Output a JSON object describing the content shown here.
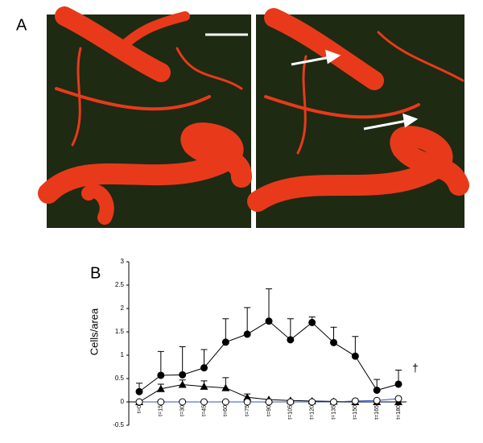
{
  "panel_a": {
    "label": "A"
  },
  "chart_data": {
    "type": "line",
    "label": "B",
    "ylabel": "Cells/area",
    "annotation": "†",
    "categories": [
      "t=0",
      "t=15",
      "t=30",
      "t=45",
      "t=60",
      "t=75",
      "t=90",
      "t=105",
      "t=120",
      "t=135",
      "t=150",
      "t=165",
      "t=180"
    ],
    "ylim": [
      -0.5,
      3
    ],
    "yticks": [
      -0.5,
      0,
      0.5,
      1,
      1.5,
      2,
      2.5,
      3
    ],
    "series": [
      {
        "color": "#000000",
        "marker": "filled-circle",
        "values": [
          0.22,
          0.57,
          0.58,
          0.73,
          1.28,
          1.45,
          1.73,
          1.33,
          1.7,
          1.27,
          0.98,
          0.25,
          0.38
        ],
        "errors": [
          0.18,
          0.51,
          0.6,
          0.39,
          0.5,
          0.57,
          0.69,
          0.45,
          0.12,
          0.33,
          0.42,
          0.23,
          0.3
        ]
      },
      {
        "color": "#000000",
        "marker": "triangle",
        "values": [
          0,
          0.28,
          0.37,
          0.33,
          0.3,
          0.1,
          0.05,
          0.03,
          0.02,
          0.01,
          0,
          0,
          0
        ],
        "errors": [
          0,
          0.1,
          0.1,
          0.12,
          0.22,
          0.07,
          0,
          0,
          0,
          0,
          0,
          0,
          0
        ]
      },
      {
        "color": "#3050c0",
        "marker": "open-circle",
        "values": [
          0,
          0,
          0,
          0,
          0,
          0,
          0,
          0,
          0,
          0,
          0.02,
          0.03,
          0.07
        ]
      }
    ]
  }
}
